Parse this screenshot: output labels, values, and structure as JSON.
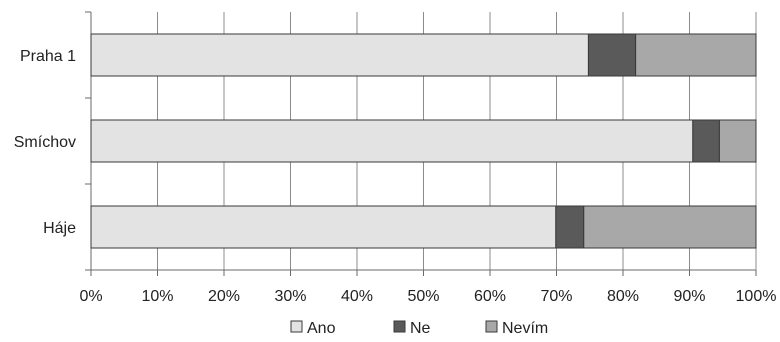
{
  "chart_data": {
    "type": "bar",
    "orientation": "horizontal",
    "stacked": "percent",
    "categories": [
      "Praha 1",
      "Smíchov",
      "Háje"
    ],
    "series": [
      {
        "name": "Ano",
        "values": [
          74.8,
          90.5,
          69.9
        ],
        "color": "#e3e3e3"
      },
      {
        "name": "Ne",
        "values": [
          7.1,
          4.0,
          4.2
        ],
        "color": "#5a5a5a"
      },
      {
        "name": "Nevím",
        "values": [
          18.1,
          5.5,
          25.9
        ],
        "color": "#a8a8a8"
      }
    ],
    "x_ticks": [
      "0%",
      "10%",
      "20%",
      "30%",
      "40%",
      "50%",
      "60%",
      "70%",
      "80%",
      "90%",
      "100%"
    ],
    "xlim": [
      0,
      100
    ],
    "grid": true,
    "legend": "bottom",
    "title": "",
    "xlabel": "",
    "ylabel": ""
  }
}
